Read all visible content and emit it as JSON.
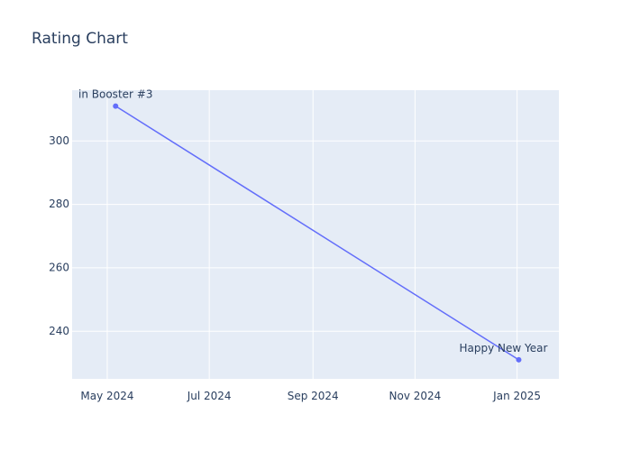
{
  "chart_data": {
    "type": "line",
    "title": "Rating Chart",
    "xlabel": "",
    "ylabel": "",
    "x_axis_type": "date",
    "x_range": [
      "2024-04-10",
      "2025-01-26"
    ],
    "y_range": [
      225,
      316
    ],
    "x_ticks": [
      {
        "date": "2024-05-01",
        "label": "May 2024"
      },
      {
        "date": "2024-07-01",
        "label": "Jul 2024"
      },
      {
        "date": "2024-09-01",
        "label": "Sep 2024"
      },
      {
        "date": "2024-11-01",
        "label": "Nov 2024"
      },
      {
        "date": "2025-01-01",
        "label": "Jan 2025"
      }
    ],
    "y_ticks": [
      240,
      260,
      280,
      300
    ],
    "grid": true,
    "plot_background": "#e5ecf6",
    "line_color": "#636efa",
    "series": [
      {
        "points": [
          {
            "x": "2024-05-06",
            "y": 311,
            "label": "in Booster #3"
          },
          {
            "x": "2025-01-02",
            "y": 231,
            "label": "Happy New Year"
          }
        ]
      }
    ]
  }
}
